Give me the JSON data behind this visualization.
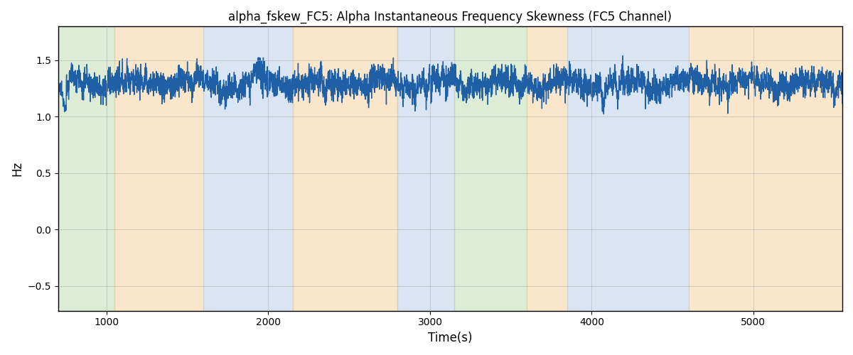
{
  "title": "alpha_fskew_FC5: Alpha Instantaneous Frequency Skewness (FC5 Channel)",
  "xlabel": "Time(s)",
  "ylabel": "Hz",
  "line_color": "#1f5fa6",
  "line_width": 1.0,
  "background_color": "#ffffff",
  "grid_color": "#aaaaaa",
  "xlim": [
    700,
    5550
  ],
  "ylim": [
    -0.72,
    1.8
  ],
  "yticks": [
    -0.5,
    0.0,
    0.5,
    1.0,
    1.5
  ],
  "xticks": [
    1000,
    2000,
    3000,
    4000,
    5000
  ],
  "figsize": [
    12,
    5
  ],
  "dpi": 100,
  "bands": [
    [
      700,
      380,
      "#aec6e8"
    ],
    [
      380,
      1050,
      "#b5d9a2"
    ],
    [
      1050,
      1600,
      "#f5c98a"
    ],
    [
      1600,
      2150,
      "#aec6e8"
    ],
    [
      2150,
      2800,
      "#f5c98a"
    ],
    [
      2800,
      3150,
      "#aec6e8"
    ],
    [
      3150,
      3600,
      "#b5d9a2"
    ],
    [
      3600,
      3850,
      "#f5c98a"
    ],
    [
      3850,
      4600,
      "#aec6e8"
    ],
    [
      4600,
      5550,
      "#f5c98a"
    ]
  ],
  "seed": 12345,
  "n_points": 5000,
  "t_start": 700,
  "t_end": 5550
}
